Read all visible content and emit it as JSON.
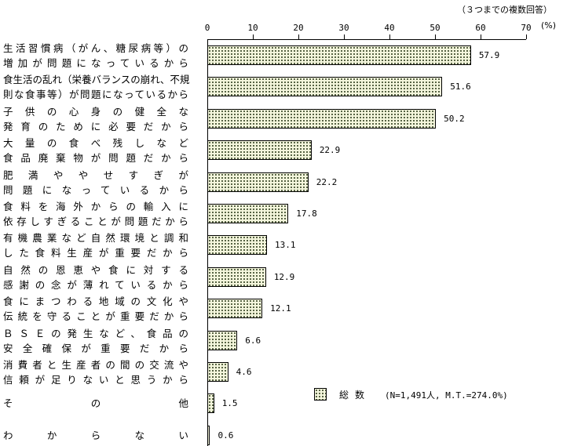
{
  "chart_data": {
    "type": "bar",
    "orientation": "horizontal",
    "note": "（３つまでの複数回答）",
    "unit": "(%)",
    "xlim": [
      0,
      70
    ],
    "ticks": [
      "0",
      "10",
      "20",
      "30",
      "40",
      "50",
      "60",
      "70"
    ],
    "categories": [
      [
        "生活習慣病（がん、糖尿病等）の",
        "増加が問題になっているから"
      ],
      [
        "食生活の乱れ（栄養バランスの崩れ、不規",
        "則な食事等）が問題になっているから"
      ],
      [
        "子供の心身の健全な",
        "発育のために必要だから"
      ],
      [
        "大量の食べ残しなど",
        "食品廃棄物が問題だから"
      ],
      [
        "肥満ややせすぎが",
        "問題になっているから"
      ],
      [
        "食料を海外からの輸入に",
        "依存しすぎることが問題だから"
      ],
      [
        "有機農業など自然環境と調和",
        "した食料生産が重要だから"
      ],
      [
        "自然の恩恵や食に対する",
        "感謝の念が薄れているから"
      ],
      [
        "食にまつわる地域の文化や",
        "伝統を守ることが重要だから"
      ],
      [
        "ＢＳＥの発生など、食品の",
        "安全確保が重要だから"
      ],
      [
        "消費者と生産者の間の交流や",
        "信頼が足りないと思うから"
      ],
      [
        "その他"
      ],
      [
        "わからない"
      ]
    ],
    "values": [
      57.9,
      51.6,
      50.2,
      22.9,
      22.2,
      17.8,
      13.1,
      12.9,
      12.1,
      6.6,
      4.6,
      1.5,
      0.6
    ],
    "value_labels": [
      "57.9",
      "51.6",
      "50.2",
      "22.9",
      "22.2",
      "17.8",
      "13.1",
      "12.9",
      "12.1",
      "6.6",
      "4.6",
      "1.5",
      "0.6"
    ],
    "series": [
      {
        "name": "総数",
        "values": [
          57.9,
          51.6,
          50.2,
          22.9,
          22.2,
          17.8,
          13.1,
          12.9,
          12.1,
          6.6,
          4.6,
          1.5,
          0.6
        ]
      }
    ],
    "legend": {
      "label": "総数",
      "note": "(N=1,491人, M.T.=274.0%)",
      "position": "lower-right"
    },
    "grid": false,
    "colors": {
      "bar_fill": "#f4f6dc",
      "bar_dots": "#2b3a1a",
      "border": "#000000"
    }
  }
}
